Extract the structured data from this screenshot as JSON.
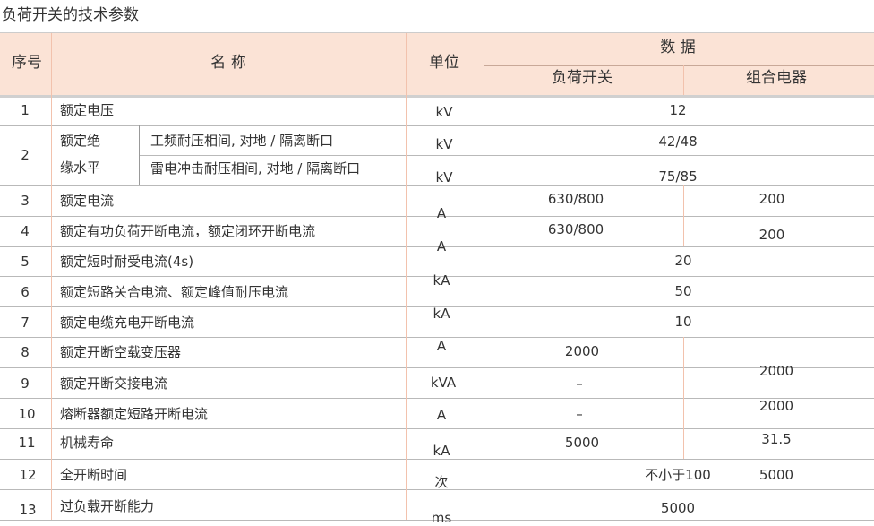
{
  "title": "负荷开关的技术参数",
  "header": {
    "no": "序号",
    "name": "名 称",
    "unit": "单位",
    "data": "数 据",
    "col1": "负荷开关",
    "col2": "组合电器"
  },
  "rows": [
    {
      "no": "1",
      "name": "额定电压",
      "unit": "kV",
      "value": "12"
    },
    {
      "no": "2",
      "name_a": "额定绝",
      "name_b": "缘水平",
      "sub1": "工频耐压相间, 对地 / 隔离断口",
      "sub2": "雷电冲击耐压相间, 对地 / 隔离断口",
      "unit1": "kV",
      "unit2": "kV",
      "value1": "42/48",
      "value2": "75/85"
    },
    {
      "no": "3",
      "name": "额定电流",
      "unit": "A",
      "v1": "630/800",
      "v2": "200"
    },
    {
      "no": "4",
      "name": "额定有功负荷开断电流，额定闭环开断电流",
      "unit": "A",
      "v1": "630/800",
      "v2": "200"
    },
    {
      "no": "5",
      "name": "额定短时耐受电流(4s)",
      "unit": "kA",
      "value": "20"
    },
    {
      "no": "6",
      "name": "额定短路关合电流、额定峰值耐压电流",
      "unit": "kA",
      "value": "50"
    },
    {
      "no": "7",
      "name": "额定电缆充电开断电流",
      "value": "10"
    },
    {
      "no": "8",
      "name": "额定开断空载变压器",
      "unit": "A",
      "v1": "2000"
    },
    {
      "no": "9",
      "name": "额定开断交接电流",
      "unit": "kVA",
      "v1": "–",
      "v2": "2000"
    },
    {
      "no": "10",
      "name": "熔断器额定短路开断电流",
      "unit": "A",
      "v1": "–",
      "v2": "2000"
    },
    {
      "no": "11",
      "name": "机械寿命",
      "unit": "kA",
      "v1": "5000",
      "v2": "31.5"
    },
    {
      "no": "12",
      "name": "全开断时间",
      "unit": "次",
      "v1": "不小于100",
      "v2": "5000"
    },
    {
      "no": "13",
      "name": "过负载开断能力",
      "unit": "ms",
      "value": "5000"
    }
  ]
}
